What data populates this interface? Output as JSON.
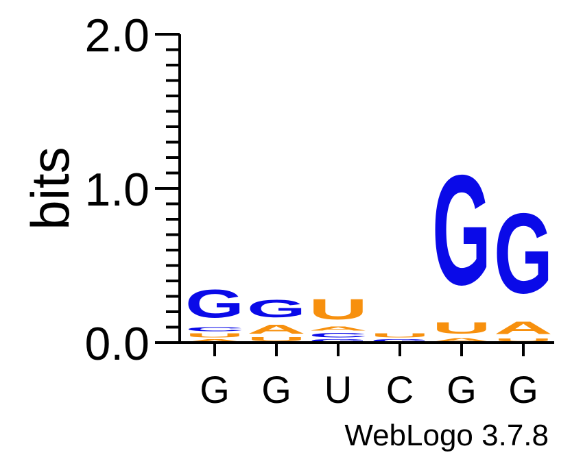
{
  "chart_data": {
    "type": "sequence-logo",
    "ylabel": "bits",
    "ylim": [
      0,
      2
    ],
    "yticks": [
      "0.0",
      "1.0",
      "2.0"
    ],
    "positions": [
      "G",
      "G",
      "U",
      "C",
      "G",
      "G"
    ],
    "footer": "WebLogo 3.7.8",
    "colors": {
      "G": "#0a0ae8",
      "C": "#0a0ae8",
      "A": "#f7900e",
      "U": "#f7900e"
    },
    "stacks": [
      [
        {
          "letter": "A",
          "bits": 0.025
        },
        {
          "letter": "U",
          "bits": 0.04
        },
        {
          "letter": "C",
          "bits": 0.04
        },
        {
          "letter": "G",
          "bits": 0.29
        }
      ],
      [
        {
          "letter": "U",
          "bits": 0.04
        },
        {
          "letter": "A",
          "bits": 0.09
        },
        {
          "letter": "G",
          "bits": 0.18
        }
      ],
      [
        {
          "letter": "G",
          "bits": 0.025
        },
        {
          "letter": "C",
          "bits": 0.045
        },
        {
          "letter": "A",
          "bits": 0.04
        },
        {
          "letter": "U",
          "bits": 0.21
        }
      ],
      [
        {
          "letter": "G",
          "bits": 0.025
        },
        {
          "letter": "U",
          "bits": 0.04
        }
      ],
      [
        {
          "letter": "A",
          "bits": 0.035
        },
        {
          "letter": "U",
          "bits": 0.12
        },
        {
          "letter": "G",
          "bits": 1.14
        }
      ],
      [
        {
          "letter": "U",
          "bits": 0.03
        },
        {
          "letter": "A",
          "bits": 0.13
        },
        {
          "letter": "G",
          "bits": 0.83
        }
      ]
    ]
  }
}
